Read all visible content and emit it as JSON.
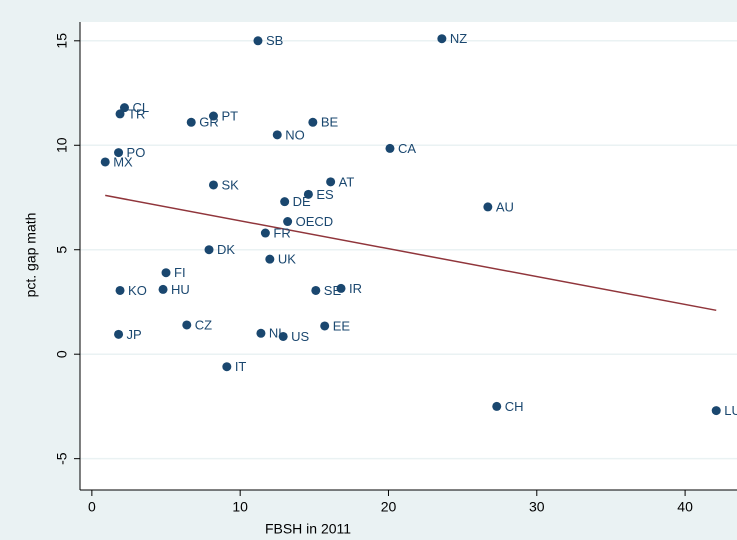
{
  "chart_data": {
    "type": "scatter",
    "x_label": "FBSH in 2011",
    "y_label": "pct. gap math",
    "labels": [
      "SB",
      "NZ",
      "CL",
      "TR",
      "GR",
      "PT",
      "BE",
      "NO",
      "CA",
      "PO",
      "MX",
      "SK",
      "AT",
      "ES",
      "DE",
      "OECD",
      "AU",
      "FR",
      "DK",
      "UK",
      "FI",
      "KO",
      "HU",
      "SE",
      "IR",
      "CZ",
      "EE",
      "JP",
      "NL",
      "US",
      "IT",
      "CH",
      "LU"
    ],
    "x": [
      11.2,
      23.6,
      2.2,
      1.9,
      6.7,
      8.2,
      14.9,
      12.5,
      20.1,
      1.8,
      0.9,
      8.2,
      16.1,
      14.6,
      13.0,
      13.2,
      26.7,
      11.7,
      7.9,
      12.0,
      5.0,
      1.9,
      4.8,
      15.1,
      16.8,
      6.4,
      15.7,
      1.8,
      11.4,
      12.9,
      9.1,
      27.3,
      42.1
    ],
    "values": [
      15.0,
      15.1,
      11.8,
      11.5,
      11.1,
      11.4,
      11.1,
      10.5,
      9.85,
      9.65,
      9.2,
      8.1,
      8.25,
      7.65,
      7.3,
      6.35,
      7.05,
      5.8,
      5.0,
      4.55,
      3.9,
      3.05,
      3.1,
      3.05,
      3.15,
      1.4,
      1.35,
      0.95,
      1.0,
      0.85,
      -0.6,
      -2.5,
      -2.7
    ],
    "color": "#1a476f",
    "fit": {
      "x": [
        0.9,
        42.1
      ],
      "values": [
        7.6,
        2.1
      ],
      "color": "#90353b"
    },
    "xlim": [
      -0.8,
      43.5
    ],
    "ylim": [
      -6.5,
      15.9
    ],
    "xticks": [
      0,
      10,
      20,
      30,
      40
    ],
    "yticks": [
      -5,
      0,
      5,
      10,
      15
    ],
    "grid": true
  }
}
